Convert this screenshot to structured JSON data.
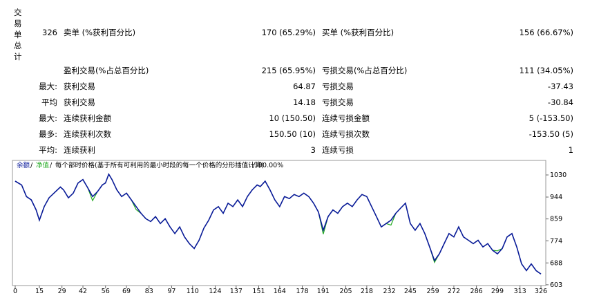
{
  "side_title": "交易单总计",
  "table": {
    "rows": [
      {
        "label": "326",
        "name": "卖单 (%获利百分比)",
        "value": "170 (65.29%)",
        "name2": "买单 (%获利百分比)",
        "value2": "156 (66.67%)"
      },
      {
        "name": "盈利交易(%占总百分比)",
        "value": "215 (65.95%)",
        "name2": "亏损交易(%占总百分比)",
        "value2": "111 (34.05%)"
      },
      {
        "label": "最大:",
        "name": "获利交易",
        "value": "64.87",
        "name2": "亏损交易",
        "value2": "-37.43"
      },
      {
        "label": "平均",
        "name": "获利交易",
        "value": "14.18",
        "name2": "亏损交易",
        "value2": "-30.84"
      },
      {
        "label": "最大:",
        "name": "连续获利金额",
        "value": "10 (150.50)",
        "name2": "连续亏损金额",
        "value2": "5 (-153.50)"
      },
      {
        "label": "最多:",
        "name": "连续获利次数",
        "value": "150.50 (10)",
        "name2": "连续亏损次数",
        "value2": "-153.50 (5)"
      },
      {
        "label": "平均:",
        "name": "连续获利",
        "value": "3",
        "name2": "连续亏损",
        "value2": "1"
      }
    ]
  },
  "chart_data": {
    "type": "line",
    "legend_note": "每个部时价格(基于所有可利用的最小时段的每一个价格的分形插值计算)",
    "quality": "90.00%",
    "x": [
      0,
      4,
      7,
      10,
      13,
      15,
      18,
      21,
      24,
      28,
      30,
      33,
      36,
      39,
      42,
      45,
      48,
      51,
      54,
      56,
      58,
      60,
      63,
      66,
      69,
      72,
      75,
      78,
      81,
      84,
      87,
      90,
      93,
      96,
      99,
      102,
      105,
      108,
      111,
      114,
      117,
      120,
      123,
      126,
      129,
      132,
      135,
      138,
      141,
      144,
      147,
      150,
      152,
      155,
      158,
      161,
      164,
      167,
      170,
      173,
      176,
      179,
      182,
      185,
      188,
      191,
      194,
      197,
      200,
      203,
      206,
      209,
      212,
      215,
      218,
      221,
      224,
      227,
      230,
      233,
      236,
      239,
      242,
      245,
      248,
      251,
      254,
      257,
      260,
      263,
      266,
      269,
      272,
      275,
      278,
      281,
      284,
      287,
      290,
      293,
      296,
      299,
      302,
      305,
      308,
      311,
      314,
      317,
      320,
      323,
      326
    ],
    "series": [
      {
        "name": "净值",
        "color": "#22aa22",
        "values": [
          1006,
          991,
          946,
          933,
          894,
          854,
          907,
          941,
          959,
          983,
          972,
          941,
          959,
          999,
          1012,
          980,
          930,
          965,
          991,
          999,
          1033,
          1012,
          972,
          946,
          959,
          933,
          895,
          881,
          860,
          849,
          868,
          841,
          860,
          828,
          802,
          828,
          789,
          763,
          744,
          776,
          823,
          854,
          894,
          907,
          881,
          920,
          907,
          933,
          907,
          946,
          972,
          991,
          985,
          1006,
          972,
          933,
          907,
          946,
          938,
          954,
          946,
          959,
          946,
          920,
          886,
          800,
          868,
          894,
          881,
          907,
          920,
          907,
          933,
          954,
          946,
          907,
          868,
          828,
          841,
          835,
          881,
          901,
          920,
          841,
          815,
          841,
          802,
          750,
          690,
          723,
          763,
          802,
          789,
          828,
          789,
          776,
          763,
          776,
          750,
          763,
          737,
          735,
          744,
          789,
          802,
          750,
          684,
          658,
          684,
          658,
          645
        ]
      },
      {
        "name": "余额",
        "color": "#0a1a9a",
        "values": [
          1006,
          991,
          946,
          933,
          894,
          854,
          907,
          941,
          959,
          983,
          972,
          941,
          959,
          999,
          1012,
          980,
          946,
          965,
          991,
          999,
          1033,
          1012,
          972,
          946,
          959,
          933,
          907,
          881,
          860,
          849,
          868,
          841,
          860,
          828,
          802,
          828,
          789,
          763,
          744,
          776,
          823,
          854,
          894,
          907,
          881,
          920,
          907,
          933,
          907,
          946,
          972,
          991,
          985,
          1006,
          972,
          933,
          907,
          946,
          938,
          954,
          946,
          959,
          946,
          920,
          886,
          815,
          868,
          894,
          881,
          907,
          920,
          907,
          933,
          954,
          946,
          907,
          868,
          828,
          841,
          854,
          881,
          901,
          920,
          841,
          815,
          841,
          802,
          750,
          697,
          723,
          763,
          802,
          789,
          828,
          789,
          776,
          763,
          776,
          750,
          763,
          737,
          723,
          744,
          789,
          802,
          750,
          684,
          658,
          684,
          658,
          645
        ]
      }
    ],
    "xlim": [
      0,
      329
    ],
    "ylim": [
      600,
      1065
    ],
    "xticks": [
      0,
      15,
      29,
      42,
      56,
      69,
      83,
      97,
      110,
      124,
      137,
      151,
      164,
      178,
      191,
      205,
      218,
      232,
      245,
      259,
      272,
      286,
      299,
      313,
      326
    ],
    "yticks": [
      603,
      688,
      774,
      859,
      944,
      1030
    ]
  }
}
